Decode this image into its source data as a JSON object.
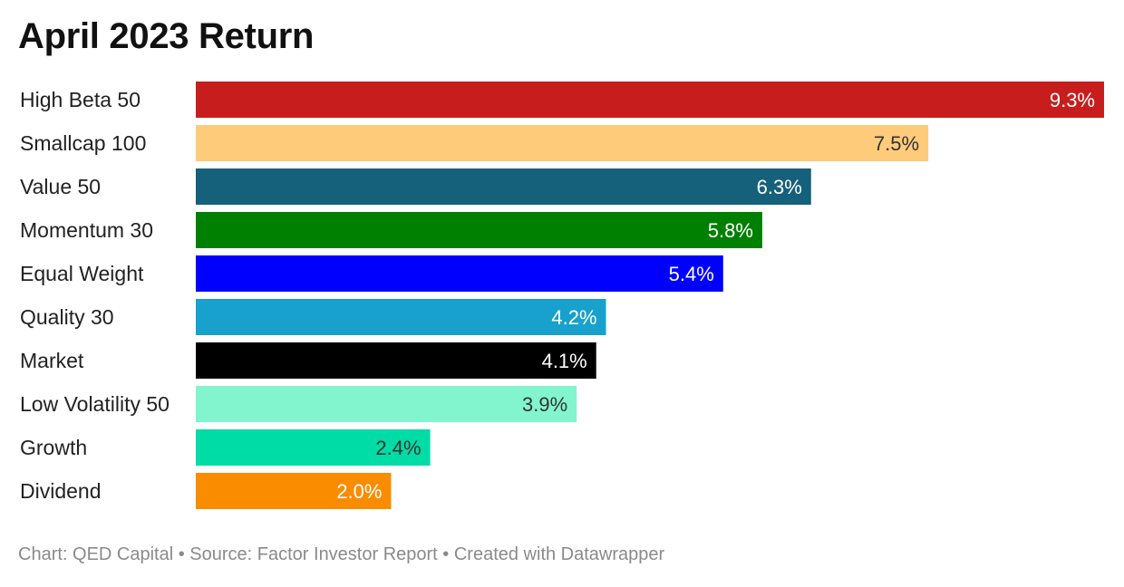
{
  "title": "April 2023 Return",
  "footer": "Chart: QED Capital • Source: Factor Investor Report • Created with Datawrapper",
  "chart_data": {
    "type": "bar",
    "orientation": "horizontal",
    "title": "April 2023 Return",
    "unit": "%",
    "categories": [
      "High Beta 50",
      "Smallcap 100",
      "Value 50",
      "Momentum 30",
      "Equal Weight",
      "Quality 30",
      "Market",
      "Low Volatility 50",
      "Growth",
      "Dividend"
    ],
    "values": [
      9.3,
      7.5,
      6.3,
      5.8,
      5.4,
      4.2,
      4.1,
      3.9,
      2.4,
      2.0
    ],
    "value_labels": [
      "9.3%",
      "7.5%",
      "6.3%",
      "5.8%",
      "5.4%",
      "4.2%",
      "4.1%",
      "3.9%",
      "2.4%",
      "2.0%"
    ],
    "colors": [
      "#c71e1d",
      "#fecb7b",
      "#15607a",
      "#008000",
      "#0000ff",
      "#18a1cd",
      "#000000",
      "#82f5cf",
      "#00dca6",
      "#fa8c00"
    ],
    "label_colors": [
      "#ffffff",
      "#333333",
      "#ffffff",
      "#ffffff",
      "#ffffff",
      "#ffffff",
      "#ffffff",
      "#333333",
      "#333333",
      "#ffffff"
    ],
    "xlim": [
      0,
      9.3
    ],
    "grid": false,
    "legend": "none"
  }
}
